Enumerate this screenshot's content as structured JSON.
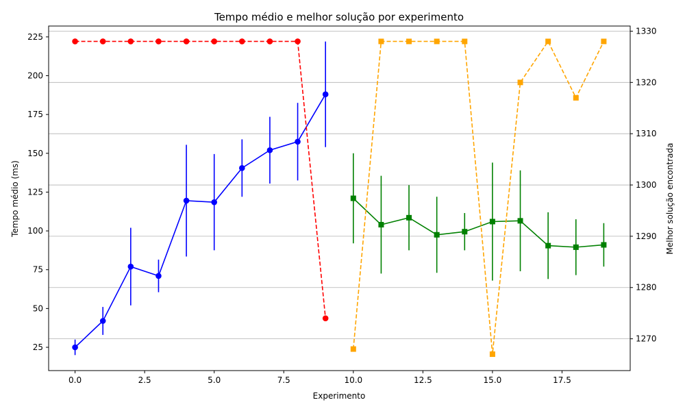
{
  "chart_data": {
    "type": "line",
    "title": "Tempo médio e melhor solução por experimento",
    "xlabel": "Experimento",
    "ylabel": "Tempo médio (ms)",
    "y2label": "Melhor solução encontrada",
    "xlim": [
      -0.95,
      19.95
    ],
    "ylim": [
      10,
      232
    ],
    "y2lim": [
      1263.8,
      1331
    ],
    "x_ticks": [
      0.0,
      2.5,
      5.0,
      7.5,
      10.0,
      12.5,
      15.0,
      17.5
    ],
    "x_tick_labels": [
      "0.0",
      "2.5",
      "5.0",
      "7.5",
      "10.0",
      "12.5",
      "15.0",
      "17.5"
    ],
    "y_ticks": [
      25,
      50,
      75,
      100,
      125,
      150,
      175,
      200,
      225
    ],
    "y_tick_labels": [
      "25",
      "50",
      "75",
      "100",
      "125",
      "150",
      "175",
      "200",
      "225"
    ],
    "y2_ticks": [
      1270,
      1280,
      1290,
      1300,
      1310,
      1320,
      1330
    ],
    "y2_tick_labels": [
      "1270",
      "1280",
      "1290",
      "1300",
      "1310",
      "1320",
      "1330"
    ],
    "grid": "horizontal lines at right-axis ticks",
    "series": [
      {
        "axis": "left",
        "color": "#0000ff",
        "marker": "circle",
        "linestyle": "solid",
        "x": [
          0,
          1,
          2,
          3,
          4,
          5,
          6,
          7,
          8,
          9
        ],
        "y": [
          25,
          42,
          77,
          71,
          119.5,
          118.5,
          140.5,
          152,
          157.5,
          188
        ],
        "err": [
          5,
          9,
          25,
          10.5,
          36,
          31,
          18.5,
          21.5,
          25,
          34
        ]
      },
      {
        "axis": "left",
        "color": "#008000",
        "marker": "square",
        "linestyle": "solid",
        "x": [
          10,
          11,
          12,
          13,
          14,
          15,
          16,
          17,
          18,
          19
        ],
        "y": [
          121,
          104,
          108.5,
          97.5,
          99.5,
          106,
          106.5,
          90.5,
          89.5,
          91
        ],
        "err": [
          29,
          31.5,
          21,
          24.5,
          12,
          38,
          32.5,
          21.5,
          18,
          14
        ]
      },
      {
        "axis": "right",
        "color": "#ff0000",
        "marker": "circle",
        "linestyle": "dashed",
        "x": [
          0,
          1,
          2,
          3,
          4,
          5,
          6,
          7,
          8,
          9
        ],
        "y": [
          1328,
          1328,
          1328,
          1328,
          1328,
          1328,
          1328,
          1328,
          1328,
          1274
        ]
      },
      {
        "axis": "right",
        "color": "#ffa500",
        "marker": "square",
        "linestyle": "dashed",
        "x": [
          10,
          11,
          12,
          13,
          14,
          15,
          16,
          17,
          18,
          19
        ],
        "y": [
          1268,
          1328,
          1328,
          1328,
          1328,
          1267,
          1320,
          1328,
          1317,
          1328
        ]
      }
    ]
  }
}
